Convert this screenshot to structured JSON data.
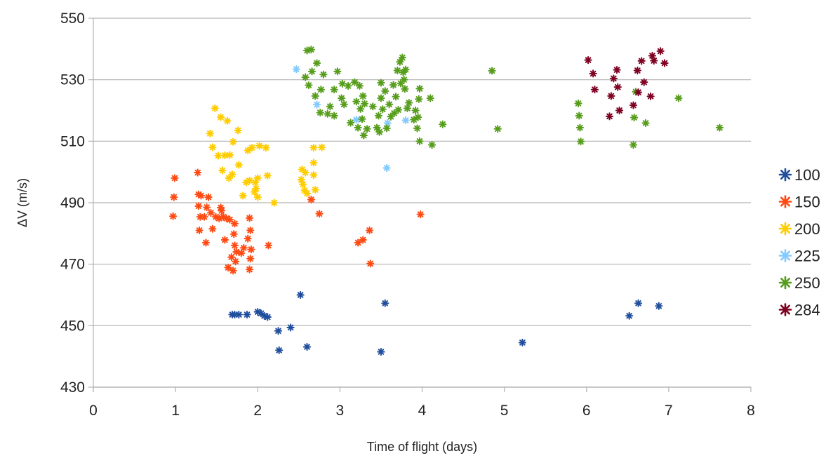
{
  "chart_data": {
    "type": "scatter",
    "title": "",
    "xlabel": "Time of flight (days)",
    "ylabel": "ΔV (m/s)",
    "xlim": [
      0,
      8
    ],
    "ylim": [
      430,
      550
    ],
    "x_ticks": [
      "0",
      "1",
      "2",
      "3",
      "4",
      "5",
      "6",
      "7",
      "8"
    ],
    "y_ticks": [
      "430",
      "450",
      "470",
      "490",
      "510",
      "530",
      "550"
    ],
    "grid": "horizontal",
    "legend_position": "right",
    "marker": "asterisk",
    "series": [
      {
        "name": "100",
        "color": "#1f4e9c",
        "points": [
          [
            1.69,
            453.6
          ],
          [
            1.72,
            453.6
          ],
          [
            1.77,
            453.6
          ],
          [
            1.87,
            453.6
          ],
          [
            2.0,
            454.5
          ],
          [
            2.04,
            454.0
          ],
          [
            2.08,
            453.2
          ],
          [
            2.12,
            452.8
          ],
          [
            2.25,
            448.3
          ],
          [
            2.26,
            442.0
          ],
          [
            2.4,
            449.4
          ],
          [
            2.52,
            460.0
          ],
          [
            2.6,
            443.1
          ],
          [
            3.5,
            441.5
          ],
          [
            3.55,
            457.3
          ],
          [
            5.22,
            444.5
          ],
          [
            6.52,
            453.2
          ],
          [
            6.63,
            457.3
          ],
          [
            6.88,
            456.4
          ]
        ]
      },
      {
        "name": "150",
        "color": "#ff4a12",
        "points": [
          [
            0.97,
            485.6
          ],
          [
            0.98,
            491.8
          ],
          [
            0.99,
            498.0
          ],
          [
            1.27,
            499.8
          ],
          [
            1.28,
            492.7
          ],
          [
            1.28,
            488.9
          ],
          [
            1.29,
            481.0
          ],
          [
            1.3,
            485.4
          ],
          [
            1.31,
            492.3
          ],
          [
            1.35,
            485.4
          ],
          [
            1.37,
            477.0
          ],
          [
            1.38,
            488.5
          ],
          [
            1.4,
            491.8
          ],
          [
            1.43,
            486.7
          ],
          [
            1.45,
            481.5
          ],
          [
            1.49,
            485.4
          ],
          [
            1.53,
            484.9
          ],
          [
            1.55,
            488.4
          ],
          [
            1.56,
            487.4
          ],
          [
            1.58,
            485.4
          ],
          [
            1.6,
            477.9
          ],
          [
            1.62,
            484.9
          ],
          [
            1.64,
            468.9
          ],
          [
            1.66,
            484.5
          ],
          [
            1.68,
            472.3
          ],
          [
            1.7,
            467.9
          ],
          [
            1.71,
            479.8
          ],
          [
            1.72,
            483.2
          ],
          [
            1.72,
            476.1
          ],
          [
            1.73,
            470.9
          ],
          [
            1.74,
            474.0
          ],
          [
            1.8,
            473.6
          ],
          [
            1.83,
            475.3
          ],
          [
            1.88,
            478.3
          ],
          [
            1.9,
            485.0
          ],
          [
            1.9,
            468.3
          ],
          [
            1.91,
            481.0
          ],
          [
            1.91,
            471.8
          ],
          [
            1.92,
            474.8
          ],
          [
            2.13,
            476.1
          ],
          [
            2.65,
            491.0
          ],
          [
            2.75,
            486.4
          ],
          [
            3.22,
            477.0
          ],
          [
            3.28,
            477.9
          ],
          [
            3.36,
            481.0
          ],
          [
            3.37,
            470.2
          ],
          [
            3.98,
            486.2
          ]
        ]
      },
      {
        "name": "200",
        "color": "#ffcc00",
        "points": [
          [
            1.42,
            512.5
          ],
          [
            1.45,
            508.0
          ],
          [
            1.48,
            520.7
          ],
          [
            1.52,
            505.3
          ],
          [
            1.55,
            517.8
          ],
          [
            1.57,
            500.5
          ],
          [
            1.6,
            505.4
          ],
          [
            1.63,
            516.6
          ],
          [
            1.65,
            498.0
          ],
          [
            1.66,
            505.5
          ],
          [
            1.69,
            499.2
          ],
          [
            1.7,
            509.8
          ],
          [
            1.76,
            513.5
          ],
          [
            1.77,
            502.3
          ],
          [
            1.82,
            492.3
          ],
          [
            1.86,
            496.6
          ],
          [
            1.88,
            507.0
          ],
          [
            1.9,
            497.2
          ],
          [
            1.93,
            507.9
          ],
          [
            1.96,
            493.5
          ],
          [
            1.97,
            496.6
          ],
          [
            1.98,
            494.6
          ],
          [
            2.0,
            498.0
          ],
          [
            2.0,
            491.8
          ],
          [
            2.02,
            508.5
          ],
          [
            2.1,
            507.9
          ],
          [
            2.12,
            498.8
          ],
          [
            2.2,
            490.0
          ],
          [
            2.53,
            497.5
          ],
          [
            2.54,
            500.8
          ],
          [
            2.55,
            496.0
          ],
          [
            2.57,
            494.0
          ],
          [
            2.58,
            499.8
          ],
          [
            2.6,
            493.0
          ],
          [
            2.68,
            507.9
          ],
          [
            2.68,
            503.0
          ],
          [
            2.68,
            499.0
          ],
          [
            2.7,
            494.2
          ],
          [
            2.78,
            508.0
          ]
        ]
      },
      {
        "name": "225",
        "color": "#83caff",
        "points": [
          [
            2.47,
            533.4
          ],
          [
            2.72,
            521.9
          ],
          [
            3.2,
            517.0
          ],
          [
            3.57,
            501.3
          ],
          [
            3.58,
            515.9
          ],
          [
            3.8,
            516.8
          ]
        ]
      },
      {
        "name": "250",
        "color": "#579d1c",
        "points": [
          [
            2.6,
            539.5
          ],
          [
            2.65,
            539.8
          ],
          [
            2.58,
            530.8
          ],
          [
            2.62,
            528.2
          ],
          [
            2.66,
            532.7
          ],
          [
            2.7,
            524.7
          ],
          [
            2.72,
            535.4
          ],
          [
            2.76,
            519.3
          ],
          [
            2.77,
            526.8
          ],
          [
            2.8,
            531.7
          ],
          [
            2.85,
            518.9
          ],
          [
            2.88,
            521.3
          ],
          [
            2.93,
            526.8
          ],
          [
            2.93,
            518.3
          ],
          [
            2.97,
            532.7
          ],
          [
            3.02,
            524.0
          ],
          [
            3.03,
            528.7
          ],
          [
            3.05,
            522.0
          ],
          [
            3.1,
            528.0
          ],
          [
            3.13,
            516.0
          ],
          [
            3.18,
            529.2
          ],
          [
            3.2,
            522.9
          ],
          [
            3.22,
            514.4
          ],
          [
            3.24,
            528.0
          ],
          [
            3.25,
            520.5
          ],
          [
            3.27,
            517.2
          ],
          [
            3.28,
            524.7
          ],
          [
            3.29,
            511.9
          ],
          [
            3.3,
            522.2
          ],
          [
            3.33,
            514.0
          ],
          [
            3.4,
            521.3
          ],
          [
            3.45,
            514.4
          ],
          [
            3.47,
            518.3
          ],
          [
            3.48,
            513.0
          ],
          [
            3.5,
            524.0
          ],
          [
            3.5,
            529.0
          ],
          [
            3.52,
            520.4
          ],
          [
            3.55,
            526.3
          ],
          [
            3.57,
            514.2
          ],
          [
            3.6,
            522.0
          ],
          [
            3.62,
            518.0
          ],
          [
            3.65,
            528.3
          ],
          [
            3.66,
            519.1
          ],
          [
            3.68,
            524.5
          ],
          [
            3.7,
            533.0
          ],
          [
            3.71,
            520.2
          ],
          [
            3.73,
            535.8
          ],
          [
            3.74,
            528.8
          ],
          [
            3.76,
            537.2
          ],
          [
            3.77,
            532.4
          ],
          [
            3.78,
            530.0
          ],
          [
            3.79,
            527.0
          ],
          [
            3.8,
            533.3
          ],
          [
            3.82,
            520.7
          ],
          [
            3.84,
            522.5
          ],
          [
            3.9,
            517.0
          ],
          [
            3.92,
            520.0
          ],
          [
            3.94,
            514.2
          ],
          [
            3.95,
            517.8
          ],
          [
            3.96,
            523.7
          ],
          [
            3.97,
            527.1
          ],
          [
            3.97,
            510.0
          ],
          [
            4.1,
            524.0
          ],
          [
            4.12,
            508.8
          ],
          [
            4.25,
            515.5
          ],
          [
            4.85,
            532.9
          ],
          [
            4.92,
            514.0
          ],
          [
            5.9,
            522.3
          ],
          [
            5.91,
            518.3
          ],
          [
            5.92,
            514.4
          ],
          [
            5.93,
            509.9
          ],
          [
            6.57,
            508.8
          ],
          [
            6.58,
            517.7
          ],
          [
            6.6,
            526.1
          ],
          [
            6.72,
            515.9
          ],
          [
            7.12,
            524.0
          ],
          [
            7.62,
            514.4
          ]
        ]
      },
      {
        "name": "284",
        "color": "#7e0021",
        "points": [
          [
            6.02,
            536.4
          ],
          [
            6.08,
            532.0
          ],
          [
            6.1,
            526.8
          ],
          [
            6.28,
            518.1
          ],
          [
            6.3,
            524.7
          ],
          [
            6.33,
            530.4
          ],
          [
            6.37,
            533.2
          ],
          [
            6.38,
            527.6
          ],
          [
            6.4,
            520.0
          ],
          [
            6.57,
            521.7
          ],
          [
            6.62,
            533.0
          ],
          [
            6.63,
            525.9
          ],
          [
            6.67,
            536.1
          ],
          [
            6.7,
            529.2
          ],
          [
            6.78,
            524.6
          ],
          [
            6.8,
            537.8
          ],
          [
            6.82,
            536.2
          ],
          [
            6.9,
            539.3
          ],
          [
            6.95,
            535.4
          ]
        ]
      }
    ]
  }
}
